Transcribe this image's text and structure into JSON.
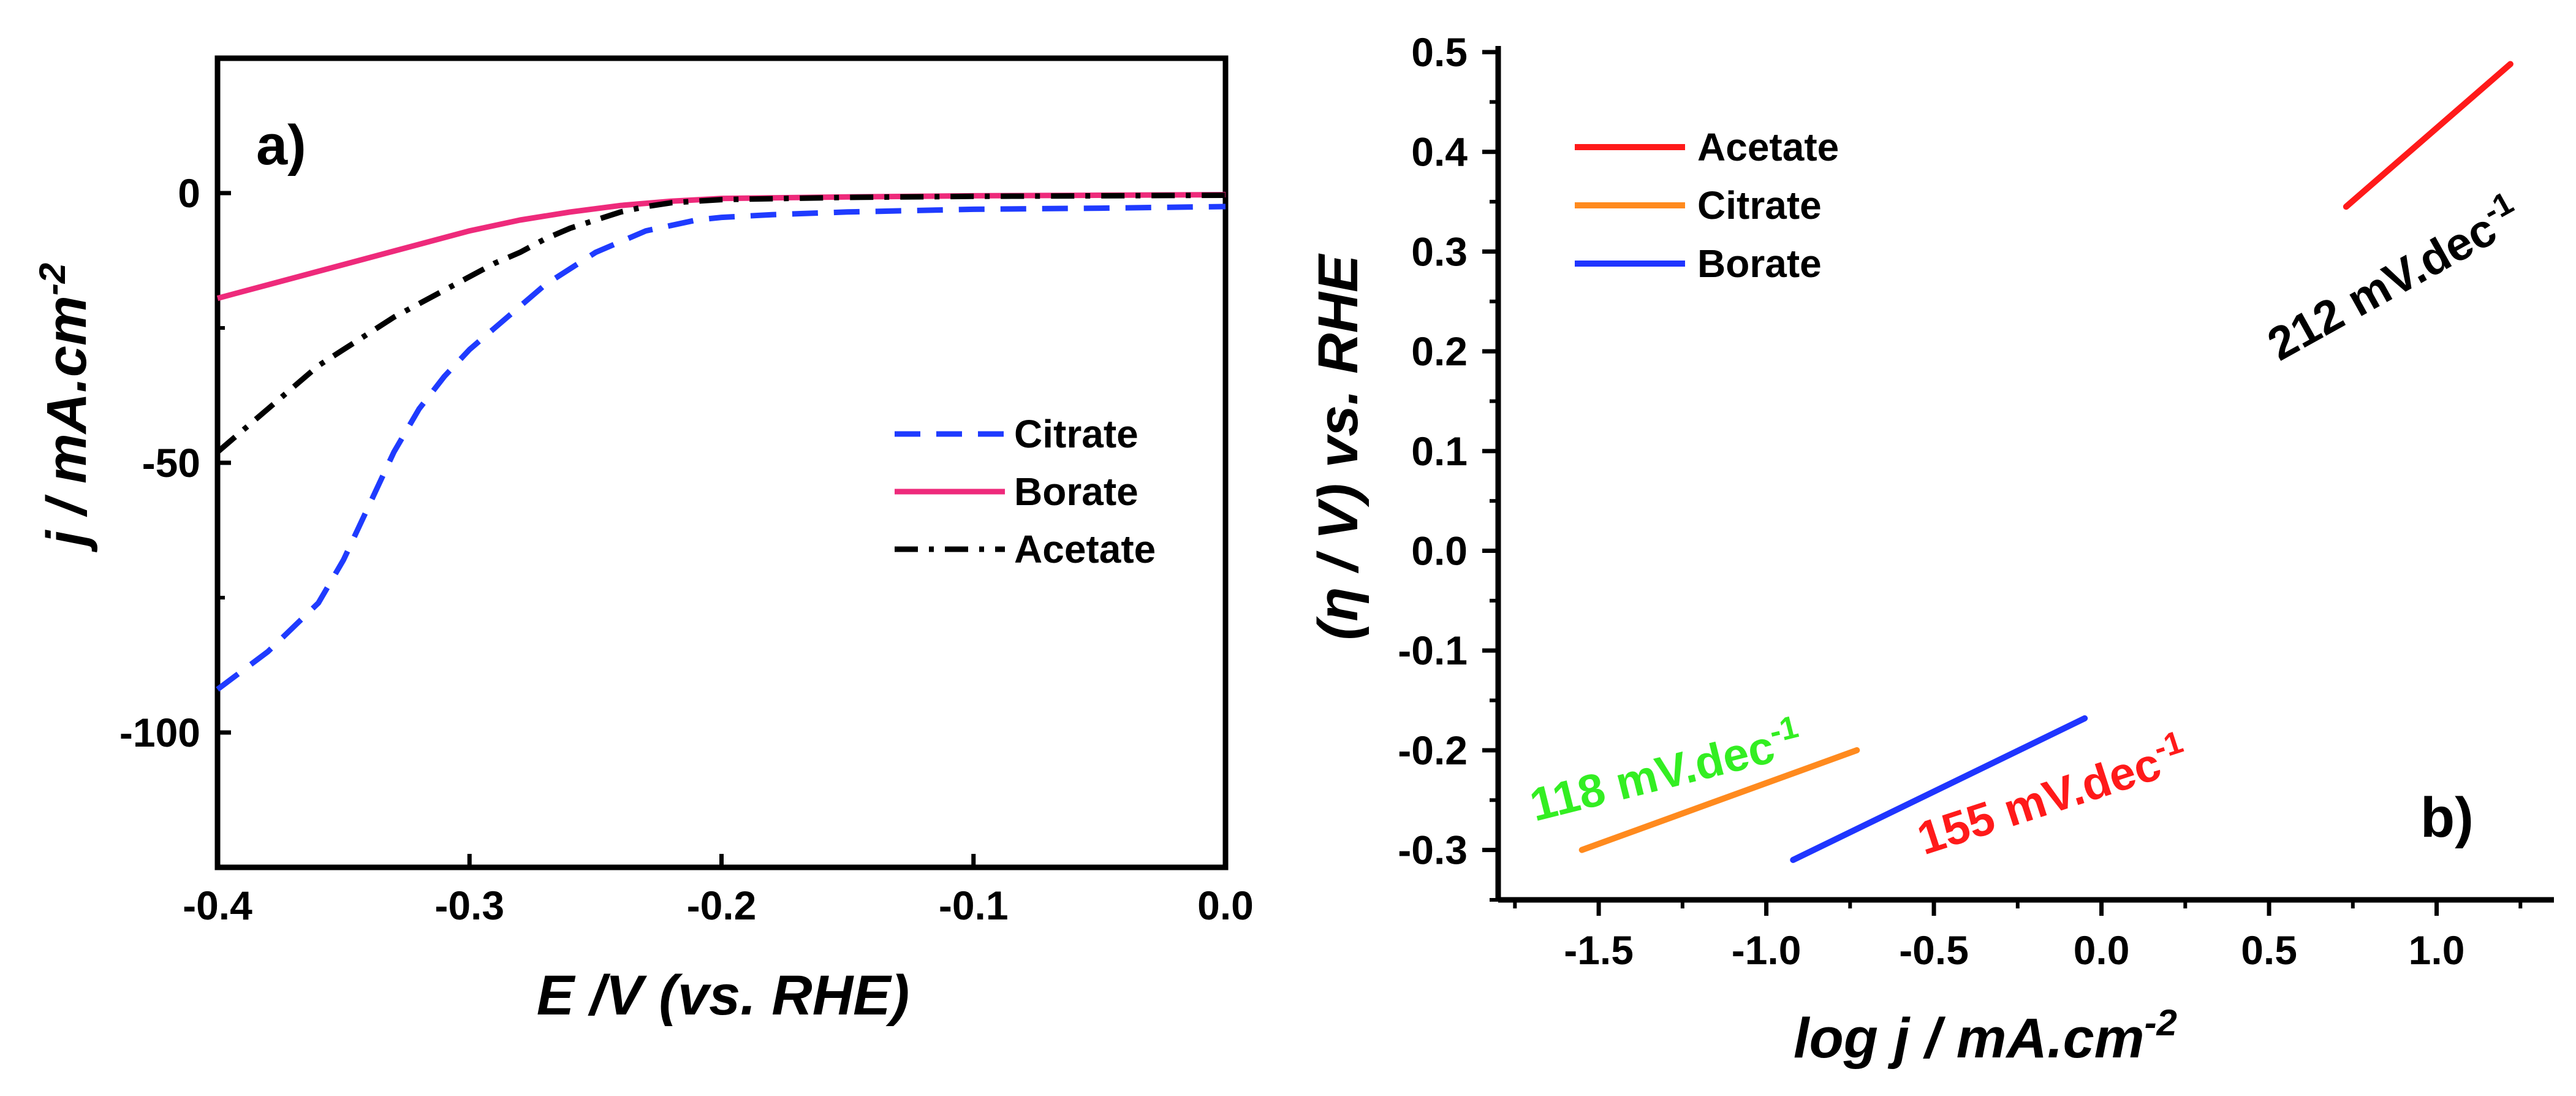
{
  "chart_data": [
    {
      "panel": "a)",
      "type": "line",
      "xlabel": "E /V (vs. RHE)",
      "ylabel": "j / mA.cm",
      "ylabel_sup": "-2",
      "xlim": [
        -0.4,
        0.0
      ],
      "ylim": [
        -125,
        25
      ],
      "x_ticks": [
        -0.4,
        -0.3,
        -0.2,
        -0.1,
        0.0
      ],
      "x_tick_labels": [
        "-0.4",
        "-0.3",
        "-0.2",
        "-0.1",
        "0.0"
      ],
      "y_ticks": [
        0,
        -50,
        -100
      ],
      "y_tick_labels": [
        "0",
        "-50",
        "-100"
      ],
      "legend_position": "center-right",
      "series": [
        {
          "name": "Citrate",
          "color": "#1f3bff",
          "style": "dashed",
          "x": [
            -0.4,
            -0.38,
            -0.36,
            -0.35,
            -0.34,
            -0.33,
            -0.32,
            -0.31,
            -0.3,
            -0.29,
            -0.28,
            -0.27,
            -0.26,
            -0.25,
            -0.24,
            -0.23,
            -0.22,
            -0.21,
            -0.2,
            -0.18,
            -0.15,
            -0.1,
            -0.05,
            0.0
          ],
          "values": [
            -92,
            -85,
            -76,
            -68,
            -58,
            -48,
            -40,
            -34,
            -29,
            -25,
            -21,
            -17,
            -14,
            -11,
            -9,
            -7,
            -6,
            -5,
            -4.5,
            -4,
            -3.5,
            -3,
            -2.8,
            -2.5
          ]
        },
        {
          "name": "Borate",
          "color": "#ee2a7b",
          "style": "solid",
          "x": [
            -0.4,
            -0.38,
            -0.36,
            -0.34,
            -0.32,
            -0.3,
            -0.28,
            -0.26,
            -0.24,
            -0.22,
            -0.2,
            -0.15,
            -0.1,
            -0.05,
            0.0
          ],
          "values": [
            -19.5,
            -17,
            -14.5,
            -12,
            -9.5,
            -7,
            -5,
            -3.5,
            -2.3,
            -1.5,
            -1,
            -0.7,
            -0.5,
            -0.4,
            -0.3
          ]
        },
        {
          "name": "Acetate",
          "color": "#000000",
          "style": "dashdot",
          "x": [
            -0.4,
            -0.39,
            -0.38,
            -0.37,
            -0.36,
            -0.35,
            -0.34,
            -0.33,
            -0.32,
            -0.31,
            -0.3,
            -0.29,
            -0.28,
            -0.27,
            -0.26,
            -0.25,
            -0.24,
            -0.23,
            -0.22,
            -0.2,
            -0.15,
            -0.1,
            -0.05,
            0.0
          ],
          "values": [
            -48,
            -44,
            -40,
            -36,
            -32,
            -29,
            -26,
            -23,
            -20.5,
            -18,
            -15.5,
            -13,
            -11,
            -8.5,
            -6.5,
            -5,
            -3.5,
            -2.5,
            -1.8,
            -1.2,
            -0.8,
            -0.6,
            -0.5,
            -0.4
          ]
        }
      ]
    },
    {
      "panel": "b)",
      "type": "line",
      "xlabel": "log j / mA.cm",
      "xlabel_sup": "-2",
      "ylabel": "(η / V) vs. RHE",
      "xlim": [
        -1.8,
        1.35
      ],
      "ylim": [
        -0.35,
        0.5
      ],
      "x_ticks": [
        -1.5,
        -1.0,
        -0.5,
        0.0,
        0.5,
        1.0
      ],
      "x_tick_labels": [
        "-1.5",
        "-1.0",
        "-0.5",
        "0.0",
        "0.5",
        "1.0"
      ],
      "y_ticks": [
        0.5,
        0.4,
        0.3,
        0.2,
        0.1,
        0.0,
        -0.1,
        -0.2,
        -0.3
      ],
      "y_tick_labels": [
        "0.5",
        "0.4",
        "0.3",
        "0.2",
        "0.1",
        "0.0",
        "-0.1",
        "-0.2",
        "-0.3"
      ],
      "legend_position": "top-left",
      "series": [
        {
          "name": "Acetate",
          "color": "#ff1a1a",
          "x": [
            0.73,
            1.22
          ],
          "values": [
            0.345,
            0.488
          ]
        },
        {
          "name": "Citrate",
          "color": "#ff8a1e",
          "x": [
            -1.55,
            -0.73
          ],
          "values": [
            -0.3,
            -0.2
          ]
        },
        {
          "name": "Borate",
          "color": "#1f35ff",
          "x": [
            -0.92,
            -0.05
          ],
          "values": [
            -0.31,
            -0.168
          ]
        }
      ],
      "annotations": [
        {
          "text": "212 mV.dec",
          "sup": "-1",
          "color": "#000000"
        },
        {
          "text": "118 mV.dec",
          "sup": "-1",
          "color": "#33ee22"
        },
        {
          "text": "155 mV.dec",
          "sup": "-1",
          "color": "#ff1a1a"
        }
      ]
    }
  ]
}
